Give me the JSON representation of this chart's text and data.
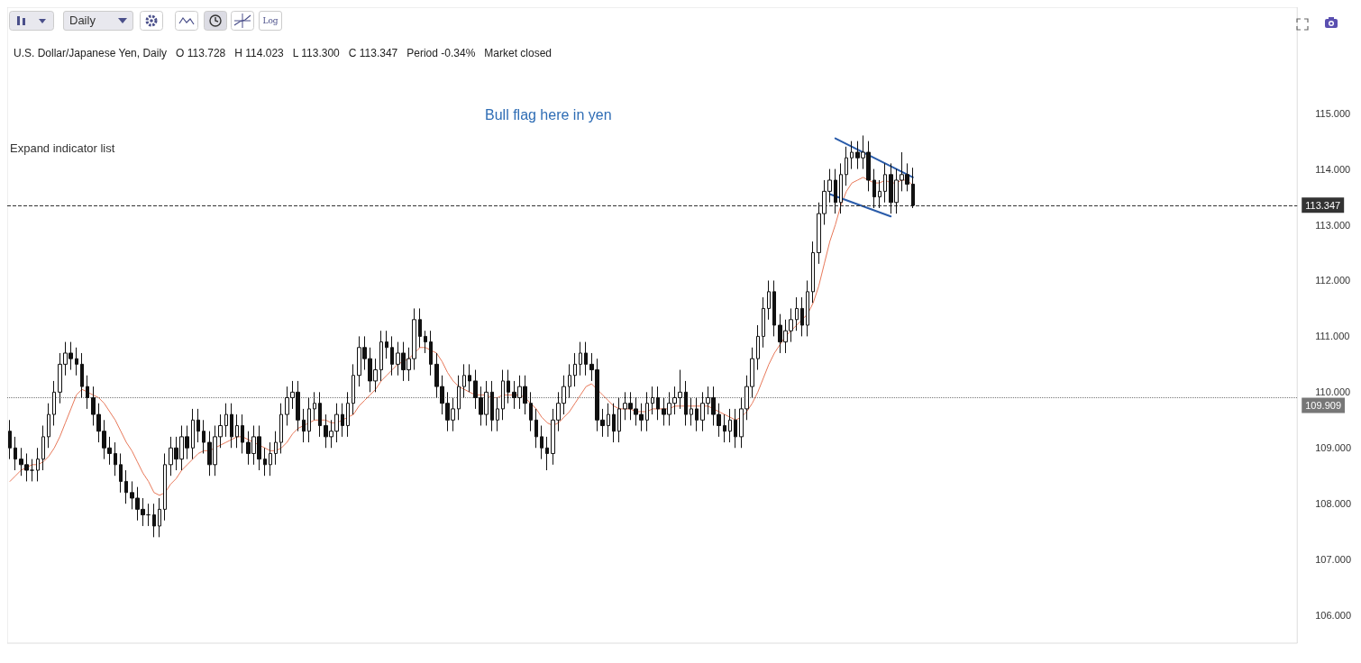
{
  "chart_data": {
    "type": "candlestick",
    "title": "U.S. Dollar/Japanese Yen, Daily   O 113.728   H 114.023   L 113.300   C 113.347   Period -0.34%   Market closed",
    "annotations": [
      "Bull flag here in yen",
      "Expand indicator list",
      "Daily",
      "Log"
    ],
    "categories": [
      null,
      null,
      null,
      null,
      null,
      null,
      null,
      null,
      null,
      null,
      null,
      null,
      null,
      null,
      null,
      null,
      null,
      null,
      null,
      null,
      null,
      null,
      null,
      null,
      null,
      null,
      null,
      null,
      null,
      null,
      null,
      null,
      null,
      null,
      null,
      null,
      null,
      null,
      null,
      null,
      null,
      null,
      null,
      null,
      null,
      null,
      null,
      null,
      null,
      null,
      null,
      null,
      null,
      null,
      null,
      null,
      null,
      null,
      null,
      null,
      null,
      null,
      null,
      null,
      null,
      null,
      null,
      null,
      null,
      null,
      null,
      null,
      null,
      null,
      null,
      null,
      null,
      null,
      null,
      null,
      null,
      null,
      null,
      null,
      null,
      null,
      null,
      null,
      null,
      null,
      null,
      null,
      null,
      null,
      null,
      null,
      null,
      null,
      null,
      null,
      null,
      null,
      null,
      null,
      null,
      null,
      null,
      null,
      null,
      null,
      null,
      null,
      null,
      null,
      null,
      null,
      null,
      null,
      null,
      null,
      null,
      null,
      null,
      null,
      null,
      null,
      null,
      null,
      null,
      null,
      null,
      null,
      null,
      null,
      null,
      null,
      null,
      null,
      null,
      null,
      null,
      null,
      null,
      null,
      null,
      null,
      null,
      null,
      null,
      null,
      null,
      null,
      null,
      null,
      null,
      null,
      null,
      null,
      null,
      null,
      null,
      null,
      null,
      null
    ],
    "ylim": [
      105.5,
      116.9
    ],
    "yticks": [
      {
        "value": 106,
        "label": "106.000"
      },
      {
        "value": 107,
        "label": "107.000"
      },
      {
        "value": 108,
        "label": "108.000"
      },
      {
        "value": 109,
        "label": "109.000"
      },
      {
        "value": 110,
        "label": "110.000"
      },
      {
        "value": 111,
        "label": "111.000"
      },
      {
        "value": 112,
        "label": "112.000"
      },
      {
        "value": 113,
        "label": "113.000"
      },
      {
        "value": 114,
        "label": "114.000"
      },
      {
        "value": 115,
        "label": "115.000"
      }
    ],
    "tick_labels": "y",
    "grid": false,
    "ref_lines": [
      {
        "axis": "y",
        "value": 113.347,
        "label": "113.347",
        "color": "#333333",
        "line_style": "dashed"
      },
      {
        "axis": "y",
        "value": 109.909,
        "label": "109.909",
        "color": "#777777",
        "line_style": "dotted"
      }
    ],
    "series": [
      {
        "type": "candlestick",
        "color": "#111111",
        "ohlc": [
          [
            109.3,
            109.5,
            108.8,
            109.0
          ],
          [
            109.0,
            109.2,
            108.6,
            108.8
          ],
          [
            108.8,
            109.0,
            108.5,
            108.7
          ],
          [
            108.7,
            108.9,
            108.4,
            108.6
          ],
          [
            108.6,
            108.8,
            108.4,
            108.6
          ],
          [
            108.6,
            109.0,
            108.4,
            108.8
          ],
          [
            108.8,
            109.4,
            108.6,
            109.2
          ],
          [
            109.2,
            109.8,
            109.0,
            109.6
          ],
          [
            109.6,
            110.2,
            109.4,
            110.0
          ],
          [
            110.0,
            110.7,
            109.8,
            110.5
          ],
          [
            110.5,
            110.9,
            110.3,
            110.7
          ],
          [
            110.7,
            110.9,
            110.4,
            110.6
          ],
          [
            110.6,
            110.8,
            110.3,
            110.5
          ],
          [
            110.5,
            110.7,
            109.9,
            110.1
          ],
          [
            110.1,
            110.3,
            109.7,
            109.9
          ],
          [
            109.9,
            110.1,
            109.4,
            109.6
          ],
          [
            109.6,
            109.8,
            109.1,
            109.3
          ],
          [
            109.3,
            109.5,
            108.8,
            109.0
          ],
          [
            109.0,
            109.2,
            108.7,
            108.9
          ],
          [
            108.9,
            109.1,
            108.5,
            108.7
          ],
          [
            108.7,
            108.9,
            108.2,
            108.4
          ],
          [
            108.4,
            108.6,
            108.0,
            108.2
          ],
          [
            108.2,
            108.4,
            107.9,
            108.1
          ],
          [
            108.1,
            108.3,
            107.7,
            107.9
          ],
          [
            107.9,
            108.1,
            107.6,
            107.8
          ],
          [
            107.8,
            108.0,
            107.6,
            107.8
          ],
          [
            107.8,
            108.0,
            107.4,
            107.6
          ],
          [
            107.6,
            108.1,
            107.4,
            107.9
          ],
          [
            107.9,
            108.9,
            107.7,
            108.7
          ],
          [
            108.7,
            109.2,
            108.5,
            109.0
          ],
          [
            109.0,
            109.2,
            108.6,
            108.8
          ],
          [
            108.8,
            109.4,
            108.6,
            109.2
          ],
          [
            109.2,
            109.4,
            108.8,
            109.0
          ],
          [
            109.0,
            109.7,
            108.8,
            109.5
          ],
          [
            109.5,
            109.7,
            109.1,
            109.3
          ],
          [
            109.3,
            109.5,
            108.9,
            109.1
          ],
          [
            109.1,
            109.3,
            108.5,
            108.7
          ],
          [
            108.7,
            109.4,
            108.5,
            109.2
          ],
          [
            109.2,
            109.6,
            109.0,
            109.4
          ],
          [
            109.4,
            109.8,
            109.2,
            109.6
          ],
          [
            109.6,
            109.8,
            109.0,
            109.2
          ],
          [
            109.2,
            109.6,
            109.0,
            109.4
          ],
          [
            109.4,
            109.6,
            108.9,
            109.1
          ],
          [
            109.1,
            109.3,
            108.7,
            108.9
          ],
          [
            108.9,
            109.4,
            108.7,
            109.2
          ],
          [
            109.2,
            109.4,
            108.6,
            108.8
          ],
          [
            108.8,
            109.0,
            108.5,
            108.7
          ],
          [
            108.7,
            109.1,
            108.5,
            108.9
          ],
          [
            108.9,
            109.3,
            108.7,
            109.1
          ],
          [
            109.1,
            109.8,
            108.9,
            109.6
          ],
          [
            109.6,
            110.1,
            109.4,
            109.9
          ],
          [
            109.9,
            110.2,
            109.7,
            110.0
          ],
          [
            110.0,
            110.2,
            109.3,
            109.5
          ],
          [
            109.5,
            109.7,
            109.1,
            109.3
          ],
          [
            109.3,
            109.9,
            109.1,
            109.7
          ],
          [
            109.7,
            110.0,
            109.5,
            109.8
          ],
          [
            109.8,
            110.0,
            109.2,
            109.4
          ],
          [
            109.4,
            109.6,
            109.0,
            109.2
          ],
          [
            109.2,
            109.5,
            109.0,
            109.3
          ],
          [
            109.3,
            109.8,
            109.1,
            109.6
          ],
          [
            109.6,
            109.8,
            109.2,
            109.4
          ],
          [
            109.4,
            110.0,
            109.2,
            109.8
          ],
          [
            109.8,
            110.5,
            109.6,
            110.3
          ],
          [
            110.3,
            111.0,
            110.1,
            110.8
          ],
          [
            110.8,
            111.0,
            110.4,
            110.6
          ],
          [
            110.6,
            110.8,
            110.0,
            110.2
          ],
          [
            110.2,
            110.6,
            110.0,
            110.4
          ],
          [
            110.4,
            111.1,
            110.2,
            110.9
          ],
          [
            110.9,
            111.1,
            110.6,
            110.8
          ],
          [
            110.8,
            111.0,
            110.3,
            110.5
          ],
          [
            110.5,
            110.9,
            110.3,
            110.7
          ],
          [
            110.7,
            110.9,
            110.2,
            110.4
          ],
          [
            110.4,
            110.8,
            110.2,
            110.6
          ],
          [
            110.6,
            111.5,
            110.4,
            111.3
          ],
          [
            111.3,
            111.5,
            110.8,
            111.0
          ],
          [
            111.0,
            111.1,
            110.7,
            110.9
          ],
          [
            110.9,
            111.1,
            110.3,
            110.5
          ],
          [
            110.5,
            110.7,
            109.9,
            110.1
          ],
          [
            110.1,
            110.3,
            109.6,
            109.8
          ],
          [
            109.8,
            110.0,
            109.3,
            109.5
          ],
          [
            109.5,
            109.9,
            109.3,
            109.7
          ],
          [
            109.7,
            110.3,
            109.5,
            110.1
          ],
          [
            110.1,
            110.5,
            109.9,
            110.3
          ],
          [
            110.3,
            110.5,
            110.0,
            110.2
          ],
          [
            110.2,
            110.4,
            109.7,
            109.9
          ],
          [
            109.9,
            110.1,
            109.4,
            109.6
          ],
          [
            109.6,
            110.2,
            109.4,
            110.0
          ],
          [
            110.0,
            110.2,
            109.3,
            109.5
          ],
          [
            109.5,
            109.9,
            109.3,
            109.7
          ],
          [
            109.7,
            110.4,
            109.5,
            110.2
          ],
          [
            110.2,
            110.4,
            109.8,
            110.0
          ],
          [
            110.0,
            110.2,
            109.7,
            109.9
          ],
          [
            109.9,
            110.3,
            109.7,
            110.1
          ],
          [
            110.1,
            110.3,
            109.6,
            109.8
          ],
          [
            109.8,
            110.0,
            109.3,
            109.5
          ],
          [
            109.5,
            109.7,
            109.0,
            109.2
          ],
          [
            109.2,
            109.4,
            108.8,
            109.0
          ],
          [
            109.0,
            109.2,
            108.6,
            108.9
          ],
          [
            108.9,
            109.7,
            108.7,
            109.5
          ],
          [
            109.5,
            110.0,
            109.3,
            109.8
          ],
          [
            109.8,
            110.3,
            109.6,
            110.1
          ],
          [
            110.1,
            110.5,
            109.9,
            110.3
          ],
          [
            110.3,
            110.7,
            110.1,
            110.5
          ],
          [
            110.5,
            110.9,
            110.3,
            110.7
          ],
          [
            110.7,
            110.9,
            110.3,
            110.5
          ],
          [
            110.5,
            110.7,
            110.2,
            110.4
          ],
          [
            110.4,
            110.6,
            109.3,
            109.5
          ],
          [
            109.5,
            109.7,
            109.2,
            109.4
          ],
          [
            109.4,
            109.8,
            109.2,
            109.6
          ],
          [
            109.6,
            109.8,
            109.1,
            109.3
          ],
          [
            109.3,
            109.9,
            109.1,
            109.7
          ],
          [
            109.7,
            110.0,
            109.5,
            109.8
          ],
          [
            109.8,
            110.0,
            109.5,
            109.7
          ],
          [
            109.7,
            109.9,
            109.4,
            109.6
          ],
          [
            109.6,
            109.8,
            109.3,
            109.5
          ],
          [
            109.5,
            110.0,
            109.3,
            109.8
          ],
          [
            109.8,
            110.1,
            109.6,
            109.9
          ],
          [
            109.9,
            110.1,
            109.5,
            109.7
          ],
          [
            109.7,
            109.9,
            109.4,
            109.6
          ],
          [
            109.6,
            110.0,
            109.4,
            109.8
          ],
          [
            109.8,
            110.1,
            109.6,
            109.9
          ],
          [
            109.9,
            110.4,
            109.7,
            110.0
          ],
          [
            110.0,
            110.2,
            109.4,
            109.6
          ],
          [
            109.6,
            109.9,
            109.4,
            109.7
          ],
          [
            109.7,
            109.9,
            109.3,
            109.5
          ],
          [
            109.5,
            110.0,
            109.3,
            109.8
          ],
          [
            109.8,
            110.1,
            109.6,
            109.9
          ],
          [
            109.9,
            110.1,
            109.4,
            109.6
          ],
          [
            109.6,
            109.8,
            109.2,
            109.4
          ],
          [
            109.4,
            109.6,
            109.1,
            109.3
          ],
          [
            109.3,
            109.7,
            109.1,
            109.5
          ],
          [
            109.5,
            109.7,
            109.0,
            109.2
          ],
          [
            109.2,
            109.9,
            109.0,
            109.7
          ],
          [
            109.7,
            110.3,
            109.5,
            110.1
          ],
          [
            110.1,
            110.8,
            109.9,
            110.6
          ],
          [
            110.6,
            111.2,
            110.4,
            111.0
          ],
          [
            111.0,
            111.7,
            110.8,
            111.5
          ],
          [
            111.5,
            112.0,
            111.3,
            111.8
          ],
          [
            111.8,
            112.0,
            111.0,
            111.2
          ],
          [
            111.2,
            111.4,
            110.7,
            110.9
          ],
          [
            110.9,
            111.3,
            110.7,
            111.1
          ],
          [
            111.1,
            111.5,
            110.9,
            111.3
          ],
          [
            111.3,
            111.7,
            111.1,
            111.5
          ],
          [
            111.5,
            111.7,
            111.0,
            111.2
          ],
          [
            111.2,
            112.0,
            111.0,
            111.8
          ],
          [
            111.8,
            112.7,
            111.6,
            112.5
          ],
          [
            112.5,
            113.4,
            112.3,
            113.2
          ],
          [
            113.2,
            113.8,
            113.0,
            113.6
          ],
          [
            113.6,
            114.0,
            113.4,
            113.8
          ],
          [
            113.8,
            114.0,
            113.2,
            113.4
          ],
          [
            113.4,
            114.1,
            113.2,
            113.9
          ],
          [
            113.9,
            114.4,
            113.7,
            114.2
          ],
          [
            114.2,
            114.5,
            114.0,
            114.3
          ],
          [
            114.3,
            114.5,
            114.0,
            114.2
          ],
          [
            114.2,
            114.6,
            114.0,
            114.3
          ],
          [
            114.3,
            114.5,
            113.6,
            113.8
          ],
          [
            113.8,
            114.0,
            113.3,
            113.5
          ],
          [
            113.5,
            113.8,
            113.3,
            113.6
          ],
          [
            113.6,
            114.1,
            113.4,
            113.9
          ],
          [
            113.9,
            114.1,
            113.2,
            113.4
          ],
          [
            113.4,
            114.0,
            113.2,
            113.8
          ],
          [
            113.8,
            114.3,
            113.6,
            113.9
          ],
          [
            113.9,
            114.1,
            113.6,
            113.728
          ],
          [
            113.728,
            114.023,
            113.3,
            113.347
          ]
        ]
      },
      {
        "type": "line",
        "color": "#e8795a",
        "values": [
          108.4,
          108.5,
          108.6,
          108.65,
          108.7,
          108.7,
          108.75,
          108.85,
          109.0,
          109.2,
          109.45,
          109.7,
          109.95,
          110.05,
          110.0,
          109.95,
          109.9,
          109.8,
          109.65,
          109.5,
          109.3,
          109.1,
          108.95,
          108.75,
          108.55,
          108.4,
          108.2,
          108.15,
          108.2,
          108.35,
          108.45,
          108.6,
          108.7,
          108.8,
          108.9,
          108.95,
          108.95,
          109.0,
          109.05,
          109.1,
          109.15,
          109.2,
          109.2,
          109.15,
          109.1,
          109.05,
          109.0,
          108.95,
          108.95,
          109.0,
          109.1,
          109.25,
          109.35,
          109.4,
          109.45,
          109.5,
          109.5,
          109.5,
          109.45,
          109.45,
          109.5,
          109.55,
          109.6,
          109.75,
          109.85,
          109.95,
          110.05,
          110.2,
          110.3,
          110.4,
          110.5,
          110.55,
          110.6,
          110.7,
          110.8,
          110.8,
          110.75,
          110.7,
          110.55,
          110.35,
          110.2,
          110.1,
          110.05,
          110.0,
          109.95,
          109.95,
          109.95,
          109.9,
          109.9,
          109.95,
          109.95,
          109.95,
          109.95,
          109.9,
          109.8,
          109.7,
          109.55,
          109.45,
          109.4,
          109.45,
          109.55,
          109.65,
          109.8,
          109.95,
          110.1,
          110.15,
          110.05,
          109.95,
          109.85,
          109.75,
          109.7,
          109.7,
          109.7,
          109.65,
          109.65,
          109.65,
          109.7,
          109.7,
          109.7,
          109.7,
          109.75,
          109.75,
          109.75,
          109.75,
          109.75,
          109.75,
          109.75,
          109.7,
          109.65,
          109.6,
          109.55,
          109.5,
          109.55,
          109.65,
          109.8,
          110.0,
          110.25,
          110.5,
          110.7,
          110.85,
          111.0,
          111.1,
          111.2,
          111.3,
          111.4,
          111.6,
          111.9,
          112.3,
          112.7,
          113.0,
          113.35,
          113.6,
          113.75,
          113.8,
          113.85,
          113.8,
          113.75,
          113.75,
          113.8,
          113.75,
          113.75,
          113.8,
          113.8,
          113.7
        ]
      },
      {
        "type": "line",
        "color": "#2a5caa",
        "values": [
          null,
          null,
          null,
          null,
          null,
          null,
          null,
          null,
          null,
          null,
          null,
          null,
          null,
          null,
          null,
          null,
          null,
          null,
          null,
          null,
          null,
          null,
          null,
          null,
          null,
          null,
          null,
          null,
          null,
          null,
          null,
          null,
          null,
          null,
          null,
          null,
          null,
          null,
          null,
          null,
          null,
          null,
          null,
          null,
          null,
          null,
          null,
          null,
          null,
          null,
          null,
          null,
          null,
          null,
          null,
          null,
          null,
          null,
          null,
          null,
          null,
          null,
          null,
          null,
          null,
          null,
          null,
          null,
          null,
          null,
          null,
          null,
          null,
          null,
          null,
          null,
          null,
          null,
          null,
          null,
          null,
          null,
          null,
          null,
          null,
          null,
          null,
          null,
          null,
          null,
          null,
          null,
          null,
          null,
          null,
          null,
          null,
          null,
          null,
          null,
          null,
          null,
          null,
          null,
          null,
          null,
          null,
          null,
          null,
          null,
          null,
          null,
          null,
          null,
          null,
          null,
          null,
          null,
          null,
          null,
          null,
          null,
          null,
          null,
          null,
          null,
          null,
          null,
          null,
          null,
          null,
          null,
          null,
          null,
          null,
          null,
          null,
          null,
          null,
          null,
          null,
          null,
          null,
          null,
          null,
          null,
          null,
          null,
          null,
          114.55,
          null,
          null,
          null,
          null,
          null,
          null,
          null,
          null,
          null,
          null,
          null,
          null,
          null,
          113.85
        ]
      },
      {
        "type": "line",
        "color": "#2a5caa",
        "values": [
          null,
          null,
          null,
          null,
          null,
          null,
          null,
          null,
          null,
          null,
          null,
          null,
          null,
          null,
          null,
          null,
          null,
          null,
          null,
          null,
          null,
          null,
          null,
          null,
          null,
          null,
          null,
          null,
          null,
          null,
          null,
          null,
          null,
          null,
          null,
          null,
          null,
          null,
          null,
          null,
          null,
          null,
          null,
          null,
          null,
          null,
          null,
          null,
          null,
          null,
          null,
          null,
          null,
          null,
          null,
          null,
          null,
          null,
          null,
          null,
          null,
          null,
          null,
          null,
          null,
          null,
          null,
          null,
          null,
          null,
          null,
          null,
          null,
          null,
          null,
          null,
          null,
          null,
          null,
          null,
          null,
          null,
          null,
          null,
          null,
          null,
          null,
          null,
          null,
          null,
          null,
          null,
          null,
          null,
          null,
          null,
          null,
          null,
          null,
          null,
          null,
          null,
          null,
          null,
          null,
          null,
          null,
          null,
          null,
          null,
          null,
          null,
          null,
          null,
          null,
          null,
          null,
          null,
          null,
          null,
          null,
          null,
          null,
          null,
          null,
          null,
          null,
          null,
          null,
          null,
          null,
          null,
          null,
          null,
          null,
          null,
          null,
          null,
          null,
          null,
          null,
          null,
          null,
          null,
          null,
          null,
          null,
          null,
          113.55,
          null,
          null,
          null,
          null,
          null,
          null,
          null,
          null,
          null,
          null,
          113.15,
          null,
          null,
          null,
          null
        ]
      }
    ]
  }
}
